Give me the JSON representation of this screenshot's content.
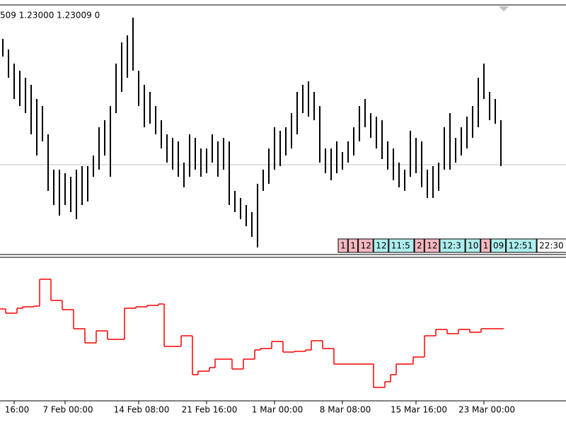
{
  "chart_data": {
    "type": "bar-ohlc",
    "header_text": "509 1.23000 1.23009 0",
    "categories": [
      null,
      null,
      "16:00",
      null,
      null,
      null,
      null,
      null,
      null,
      null,
      null,
      "7 Feb 00:00",
      null,
      null,
      null,
      null,
      null,
      null,
      null,
      null,
      null,
      null,
      null,
      null,
      "14 Feb 08:00",
      null,
      null,
      null,
      null,
      null,
      null,
      null,
      null,
      null,
      null,
      null,
      "21 Feb 16:00",
      null,
      null,
      null,
      null,
      null,
      null,
      null,
      null,
      null,
      null,
      null,
      "1 Mar 00:00",
      null,
      null,
      null,
      null,
      null,
      null,
      null,
      null,
      null,
      null,
      null,
      "8 Mar 08:00",
      null,
      null,
      null,
      null,
      null,
      null,
      null,
      null,
      null,
      null,
      null,
      null,
      "15 Mar 16:00",
      null,
      null,
      null,
      null,
      null,
      null,
      null,
      null,
      null,
      null,
      null,
      "23 Mar 00:00",
      null,
      null,
      null
    ],
    "high": [
      305,
      290,
      270,
      260,
      250,
      240,
      220,
      210,
      170,
      120,
      120,
      115,
      110,
      120,
      125,
      125,
      140,
      180,
      190,
      210,
      270,
      300,
      310,
      335,
      260,
      240,
      230,
      210,
      190,
      170,
      165,
      160,
      130,
      170,
      165,
      150,
      150,
      170,
      160,
      165,
      160,
      90,
      80,
      70,
      60,
      100,
      120,
      150,
      180,
      175,
      180,
      200,
      230,
      240,
      245,
      230,
      210,
      150,
      150,
      160,
      145,
      160,
      180,
      210,
      220,
      200,
      195,
      190,
      160,
      150,
      130,
      120,
      175,
      165,
      160,
      120,
      125,
      130,
      180,
      200,
      165,
      180,
      195,
      210,
      250,
      270,
      230,
      220,
      190
    ],
    "low": [
      280,
      250,
      220,
      210,
      200,
      170,
      140,
      160,
      90,
      70,
      55,
      70,
      60,
      50,
      70,
      75,
      110,
      120,
      140,
      110,
      200,
      230,
      250,
      260,
      210,
      180,
      185,
      170,
      150,
      130,
      120,
      110,
      95,
      110,
      120,
      110,
      115,
      130,
      110,
      120,
      70,
      60,
      50,
      40,
      25,
      10,
      90,
      100,
      120,
      125,
      140,
      150,
      170,
      200,
      195,
      190,
      130,
      115,
      105,
      115,
      120,
      130,
      140,
      160,
      180,
      165,
      150,
      135,
      120,
      105,
      95,
      90,
      110,
      115,
      95,
      80,
      80,
      90,
      120,
      120,
      130,
      140,
      150,
      165,
      180,
      220,
      190,
      185,
      125
    ],
    "ylim": [
      0,
      352
    ],
    "bid_line": 127,
    "bar_color": "#000000",
    "bid_line_color": "#c0c0c0",
    "indicator": {
      "color": "#ff0000",
      "ylim": [
        0,
        205
      ],
      "values": [
        133,
        127,
        127,
        134,
        136,
        136,
        137,
        175,
        175,
        145,
        145,
        132,
        132,
        105,
        105,
        85,
        85,
        102,
        102,
        90,
        90,
        90,
        134,
        134,
        136,
        136,
        138,
        138,
        140,
        80,
        80,
        80,
        95,
        95,
        40,
        45,
        45,
        50,
        62,
        62,
        62,
        48,
        48,
        62,
        62,
        75,
        77,
        77,
        87,
        87,
        72,
        72,
        73,
        73,
        75,
        88,
        88,
        77,
        77,
        55,
        55,
        55,
        55,
        55,
        55,
        55,
        22,
        22,
        30,
        40,
        55,
        55,
        55,
        65,
        65,
        95,
        95,
        104,
        104,
        98,
        98,
        104,
        104,
        100,
        100,
        105,
        105,
        105,
        105
      ]
    },
    "trade_labels": [
      {
        "label": "1",
        "color": "#f4b8c0"
      },
      {
        "label": "1",
        "color": "#f4b8c0"
      },
      {
        "label": "12",
        "color": "#f4b8c0"
      },
      {
        "label": "12",
        "color": "#aeeeee"
      },
      {
        "label": "11:5",
        "color": "#aeeeee"
      },
      {
        "label": "2",
        "color": "#f4b8c0"
      },
      {
        "label": "12",
        "color": "#f4b8c0"
      },
      {
        "label": "12:3",
        "color": "#aeeeee"
      },
      {
        "label": "10",
        "color": "#aeeeee"
      },
      {
        "label": "1",
        "color": "#f4b8c0"
      },
      {
        "label": "09",
        "color": "#aeeeee"
      },
      {
        "label": "12:51",
        "color": "#aeeeee"
      },
      {
        "label": "22:30",
        "color": "#ffffff"
      }
    ]
  }
}
